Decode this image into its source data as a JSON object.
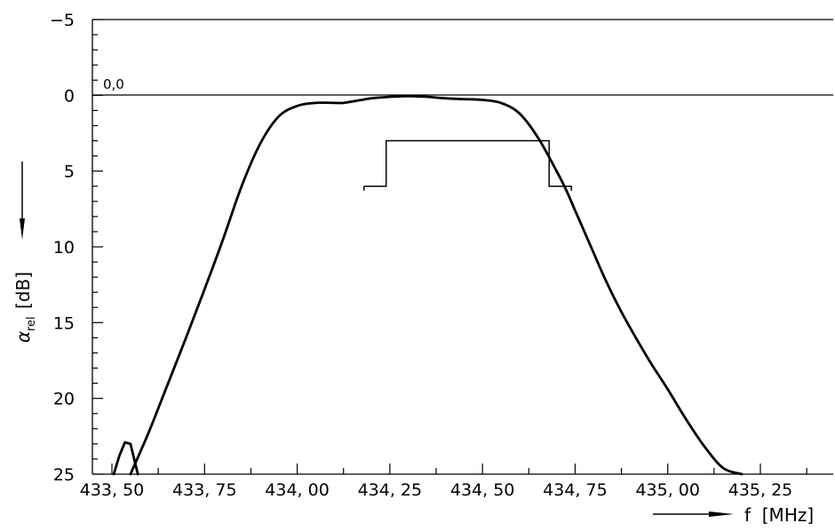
{
  "chart_data": {
    "type": "line",
    "xlabel": "f  [MHz]",
    "ylabel_symbol": "α",
    "ylabel_subscript": "rel",
    "ylabel_unit": "[dB]",
    "ref_label": "0,0",
    "xlim": [
      433.45,
      435.45
    ],
    "ylim": [
      -5,
      25
    ],
    "y_inverted": true,
    "grid": false,
    "x_ticks": [
      433.5,
      433.75,
      434.0,
      434.25,
      434.5,
      434.75,
      435.0,
      435.25
    ],
    "x_tick_labels": [
      "433, 50",
      "433, 75",
      "434, 00",
      "434, 25",
      "434, 50",
      "434, 75",
      "435, 00",
      "435, 25"
    ],
    "y_ticks": [
      -5,
      0,
      5,
      10,
      15,
      20,
      25
    ],
    "y_tick_labels": [
      "−5",
      "0",
      "5",
      "10",
      "15",
      "20",
      "25"
    ],
    "series": [
      {
        "role": "attenuation-curve",
        "x": [
          433.55,
          433.6,
          433.65,
          433.7,
          433.75,
          433.8,
          433.85,
          433.9,
          433.95,
          434.0,
          434.05,
          434.1,
          434.125,
          434.15,
          434.175,
          434.2,
          434.25,
          434.3,
          434.35,
          434.4,
          434.45,
          434.5,
          434.55,
          434.6,
          434.65,
          434.7,
          434.725,
          434.75,
          434.775,
          434.8,
          434.825,
          434.85,
          434.875,
          434.9,
          434.95,
          435.0,
          435.05,
          435.1,
          435.15,
          435.2,
          435.25,
          435.3,
          435.35
        ],
        "y": [
          25.0,
          22.2,
          19.1,
          16.0,
          12.8,
          9.5,
          6.0,
          3.2,
          1.4,
          0.7,
          0.5,
          0.5,
          0.5,
          0.4,
          0.3,
          0.2,
          0.1,
          0.05,
          0.1,
          0.2,
          0.25,
          0.3,
          0.5,
          1.2,
          2.8,
          5.0,
          6.2,
          7.6,
          9.0,
          10.4,
          11.8,
          13.1,
          14.3,
          15.4,
          17.5,
          19.4,
          21.4,
          23.2,
          24.6,
          25.0,
          25.0,
          25.0,
          25.0
        ]
      },
      {
        "role": "spurious-response-left",
        "x": [
          433.505,
          433.52,
          433.535,
          433.55,
          433.56,
          433.57
        ],
        "y": [
          25.0,
          23.8,
          22.9,
          23.0,
          24.0,
          25.0
        ]
      },
      {
        "role": "tolerance-mask",
        "x": [
          434.18,
          434.24,
          434.24,
          434.68,
          434.68,
          434.74
        ],
        "y": [
          6.0,
          6.0,
          3.0,
          3.0,
          6.0,
          6.0
        ],
        "end_ticks": [
          434.18,
          434.74
        ]
      }
    ]
  }
}
